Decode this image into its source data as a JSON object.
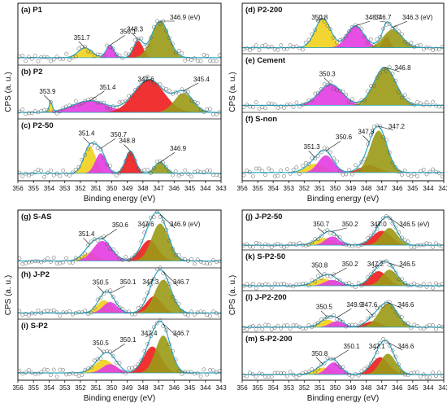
{
  "colors": {
    "yellow": "#f2d01c",
    "magenta": "#e33ce0",
    "red": "#ee1c1c",
    "olive": "#9a9a16",
    "envelope": "#2aa8c4",
    "marker": "#555555",
    "background": "#888888"
  },
  "chart_data": {
    "type": "area",
    "description_of_axes": "",
    "xlim": [
      356,
      343
    ],
    "xticks": [
      356,
      355,
      354,
      353,
      352,
      351,
      350,
      349,
      348,
      347,
      346,
      345,
      344,
      343
    ],
    "xlabel": "Binding energy (eV)",
    "ylabel": "CPS (a. u.)",
    "blocks": [
      {
        "ylabel": "CPS (a. u.)",
        "xlabel": "Binding energy (eV)",
        "panels": [
          {
            "label": "(a)",
            "name": "P1",
            "peaks": [
              {
                "center": 351.7,
                "height": 0.22,
                "sigma": 0.45,
                "color": "yellow",
                "label": "351.7"
              },
              {
                "center": 350.1,
                "height": 0.28,
                "sigma": 0.25,
                "color": "magenta",
                "label": "350.1"
              },
              {
                "center": 348.3,
                "height": 0.38,
                "sigma": 0.3,
                "color": "red",
                "label": "348.3"
              },
              {
                "center": 346.9,
                "height": 0.82,
                "sigma": 0.55,
                "color": "olive",
                "label": "346.9 (eV)"
              }
            ]
          },
          {
            "label": "(b)",
            "name": "P2",
            "peaks": [
              {
                "center": 353.9,
                "height": 0.25,
                "sigma": 0.1,
                "color": "yellow",
                "label": "353.9"
              },
              {
                "center": 351.4,
                "height": 0.3,
                "sigma": 1.1,
                "color": "magenta",
                "label": "351.4"
              },
              {
                "center": 347.6,
                "height": 0.85,
                "sigma": 0.95,
                "color": "red",
                "label": "347.6"
              },
              {
                "center": 345.4,
                "height": 0.5,
                "sigma": 0.6,
                "color": "olive",
                "label": "345.4"
              }
            ]
          },
          {
            "label": "(c)",
            "name": "P2-50",
            "peaks": [
              {
                "center": 351.4,
                "height": 0.6,
                "sigma": 0.38,
                "color": "yellow",
                "label": "351.4"
              },
              {
                "center": 350.7,
                "height": 0.45,
                "sigma": 0.35,
                "color": "magenta",
                "label": "350.7"
              },
              {
                "center": 348.8,
                "height": 0.5,
                "sigma": 0.32,
                "color": "red",
                "label": "348.8"
              },
              {
                "center": 346.9,
                "height": 0.25,
                "sigma": 0.35,
                "color": "olive",
                "label": "346.9"
              }
            ]
          }
        ]
      },
      {
        "ylabel": "CPS (a. u.)",
        "xlabel": "Binding energy (eV)",
        "panels": [
          {
            "label": "(d)",
            "name": "P2-200",
            "peaks": [
              {
                "center": 350.8,
                "height": 0.8,
                "sigma": 0.5,
                "color": "yellow",
                "label": "350.8"
              },
              {
                "center": 348.7,
                "height": 0.6,
                "sigma": 0.55,
                "color": "magenta",
                "label": "348.7"
              },
              {
                "center": 346.7,
                "height": 0.3,
                "sigma": 0.22,
                "color": "red",
                "label": "346.7"
              },
              {
                "center": 346.3,
                "height": 0.5,
                "sigma": 0.6,
                "color": "olive",
                "label": "346.3 (eV)"
              }
            ]
          },
          {
            "label": "(e)",
            "name": "Cement",
            "peaks": [
              {
                "center": 350.3,
                "height": 0.5,
                "sigma": 0.75,
                "color": "magenta",
                "label": "350.3"
              },
              {
                "center": 346.8,
                "height": 0.9,
                "sigma": 0.7,
                "color": "olive",
                "label": "346.8"
              }
            ]
          },
          {
            "label": "(f)",
            "name": "S-non",
            "peaks": [
              {
                "center": 351.3,
                "height": 0.18,
                "sigma": 0.6,
                "color": "yellow",
                "label": "351.3"
              },
              {
                "center": 350.6,
                "height": 0.35,
                "sigma": 0.5,
                "color": "magenta",
                "label": "350.6"
              },
              {
                "center": 347.8,
                "height": 0.15,
                "sigma": 0.6,
                "color": "red",
                "label": "347.8"
              },
              {
                "center": 347.2,
                "height": 0.85,
                "sigma": 0.55,
                "color": "olive",
                "label": "347.2"
              }
            ]
          }
        ]
      },
      {
        "ylabel": "CPS (a. u.)",
        "xlabel": "Binding energy (eV)",
        "panels": [
          {
            "label": "(g)",
            "name": "S-AS",
            "peaks": [
              {
                "center": 351.4,
                "height": 0.2,
                "sigma": 0.5,
                "color": "yellow",
                "label": "351.4"
              },
              {
                "center": 350.6,
                "height": 0.48,
                "sigma": 0.6,
                "color": "magenta",
                "label": "350.6"
              },
              {
                "center": 347.6,
                "height": 0.5,
                "sigma": 0.55,
                "color": "red",
                "label": "347.6"
              },
              {
                "center": 346.9,
                "height": 0.9,
                "sigma": 0.55,
                "color": "olive",
                "label": "346.9 (eV)"
              }
            ]
          },
          {
            "label": "(h)",
            "name": "J-P2",
            "peaks": [
              {
                "center": 350.5,
                "height": 0.35,
                "sigma": 0.45,
                "color": "yellow",
                "label": "350.5"
              },
              {
                "center": 350.1,
                "height": 0.3,
                "sigma": 0.45,
                "color": "magenta",
                "label": "350.1"
              },
              {
                "center": 347.3,
                "height": 0.45,
                "sigma": 0.5,
                "color": "red",
                "label": "347.3"
              },
              {
                "center": 346.7,
                "height": 0.9,
                "sigma": 0.55,
                "color": "olive",
                "label": "346.7"
              }
            ]
          },
          {
            "label": "(i)",
            "name": "S-P2",
            "peaks": [
              {
                "center": 350.5,
                "height": 0.3,
                "sigma": 0.6,
                "color": "yellow",
                "label": "350.5"
              },
              {
                "center": 350.1,
                "height": 0.2,
                "sigma": 0.5,
                "color": "magenta",
                "label": "350.1"
              },
              {
                "center": 347.4,
                "height": 0.6,
                "sigma": 0.55,
                "color": "red",
                "label": "347.4"
              },
              {
                "center": 346.7,
                "height": 0.85,
                "sigma": 0.5,
                "color": "olive",
                "label": "346.7"
              }
            ]
          }
        ]
      },
      {
        "ylabel": "CPS (a. u.)",
        "xlabel": "Binding energy (eV)",
        "panels": [
          {
            "label": "(j)",
            "name": "J-P2-50",
            "peaks": [
              {
                "center": 350.7,
                "height": 0.25,
                "sigma": 0.6,
                "color": "yellow",
                "label": "350.7"
              },
              {
                "center": 350.2,
                "height": 0.3,
                "sigma": 0.45,
                "color": "magenta",
                "label": "350.2"
              },
              {
                "center": 347.0,
                "height": 0.5,
                "sigma": 0.6,
                "color": "red",
                "label": "347.0"
              },
              {
                "center": 346.5,
                "height": 0.6,
                "sigma": 0.5,
                "color": "olive",
                "label": "346.5 (eV)"
              }
            ]
          },
          {
            "label": "(k)",
            "name": "S-P2-50",
            "peaks": [
              {
                "center": 350.8,
                "height": 0.25,
                "sigma": 0.6,
                "color": "yellow",
                "label": "350.8"
              },
              {
                "center": 350.2,
                "height": 0.2,
                "sigma": 0.5,
                "color": "magenta",
                "label": "350.2"
              },
              {
                "center": 347.2,
                "height": 0.5,
                "sigma": 0.55,
                "color": "red",
                "label": "347.2"
              },
              {
                "center": 346.5,
                "height": 0.55,
                "sigma": 0.5,
                "color": "olive",
                "label": "346.5"
              }
            ]
          },
          {
            "label": "(l)",
            "name": "J-P2-200",
            "peaks": [
              {
                "center": 350.5,
                "height": 0.25,
                "sigma": 0.5,
                "color": "yellow",
                "label": "350.5"
              },
              {
                "center": 349.9,
                "height": 0.2,
                "sigma": 0.45,
                "color": "magenta",
                "label": "349.9"
              },
              {
                "center": 347.6,
                "height": 0.2,
                "sigma": 0.5,
                "color": "red",
                "label": "347.6"
              },
              {
                "center": 346.6,
                "height": 0.8,
                "sigma": 0.6,
                "color": "olive",
                "label": "346.6"
              }
            ]
          },
          {
            "label": "(m)",
            "name": "S-P2-200",
            "peaks": [
              {
                "center": 350.8,
                "height": 0.2,
                "sigma": 0.55,
                "color": "yellow",
                "label": "350.8"
              },
              {
                "center": 350.1,
                "height": 0.35,
                "sigma": 0.45,
                "color": "magenta",
                "label": "350.1"
              },
              {
                "center": 347.1,
                "height": 0.5,
                "sigma": 0.55,
                "color": "red",
                "label": "347.1"
              },
              {
                "center": 346.6,
                "height": 0.6,
                "sigma": 0.5,
                "color": "olive",
                "label": "346.6"
              }
            ]
          }
        ]
      }
    ]
  }
}
